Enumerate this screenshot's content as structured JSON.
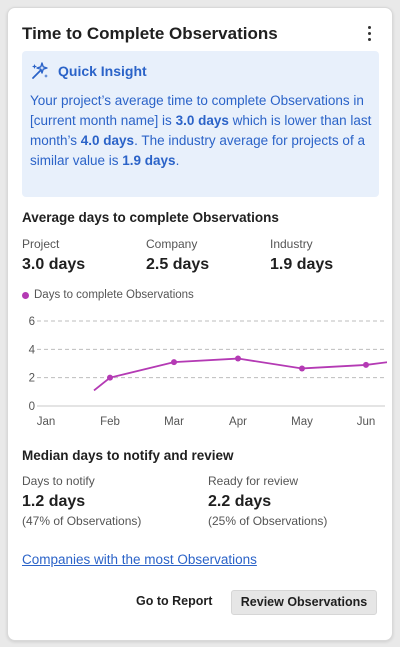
{
  "card": {
    "title": "Time to Complete Observations"
  },
  "insight": {
    "icon": "sparkles-icon",
    "title": "Quick Insight",
    "text_1": "Your project’s average time to complete Observations in [current month name] is ",
    "value_1": "3.0 days",
    "text_2": " which is lower than last month’s ",
    "value_2": "4.0 days",
    "text_3": ". The industry average for projects of a similar value is ",
    "value_3": "1.9 days",
    "text_4": "."
  },
  "average": {
    "title": "Average days to complete Observations",
    "stats": [
      {
        "label": "Project",
        "value": "3.0 days"
      },
      {
        "label": "Company",
        "value": "2.5 days"
      },
      {
        "label": "Industry",
        "value": "1.9 days"
      }
    ]
  },
  "chart_data": {
    "type": "line",
    "series": [
      {
        "name": "Days to complete Observations",
        "color": "#b43ab4",
        "x": [
          "Jan",
          "Feb",
          "Mar",
          "Apr",
          "May",
          "Jun"
        ],
        "points": [
          [
            0.75,
            1.1
          ],
          [
            1.0,
            2.0
          ],
          [
            2.0,
            3.1
          ],
          [
            3.0,
            3.35
          ],
          [
            4.0,
            2.65
          ],
          [
            5.0,
            2.9
          ],
          [
            5.35,
            3.1
          ]
        ]
      }
    ],
    "categories": [
      "Jan",
      "Feb",
      "Mar",
      "Apr",
      "May",
      "Jun"
    ],
    "yticks": [
      "0",
      "2",
      "4",
      "6"
    ],
    "ylim": [
      0,
      6
    ],
    "grid": "dashed"
  },
  "median": {
    "title": "Median days to notify and review",
    "stats": [
      {
        "label": "Days to notify",
        "value": "1.2 days",
        "sub": "(47% of Observations)"
      },
      {
        "label": "Ready for review",
        "value": "2.2 days",
        "sub": "(25% of Observations)"
      }
    ]
  },
  "links": {
    "companies": "Companies with the most Observations"
  },
  "actions": {
    "go_to_report": "Go to Report",
    "review": "Review Observations"
  }
}
